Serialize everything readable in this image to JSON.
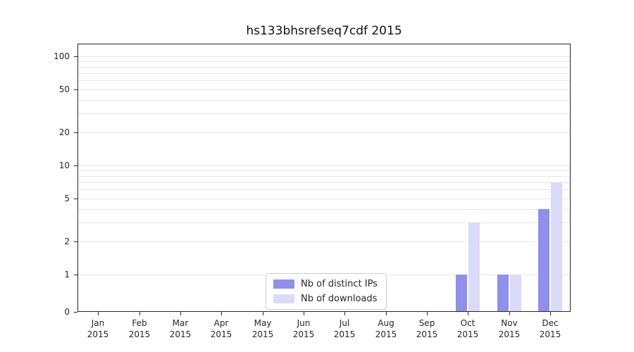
{
  "chart_data": {
    "type": "bar",
    "title": "hs133bhsrefseq7cdf 2015",
    "categories": [
      "Jan 2015",
      "Feb 2015",
      "Mar 2015",
      "Apr 2015",
      "May 2015",
      "Jun 2015",
      "Jul 2015",
      "Aug 2015",
      "Sep 2015",
      "Oct 2015",
      "Nov 2015",
      "Dec 2015"
    ],
    "series": [
      {
        "name": "Nb of distinct IPs",
        "color": "#8f8fee",
        "values": [
          0,
          0,
          0,
          0,
          0,
          0,
          0,
          0,
          0,
          1,
          1,
          4
        ]
      },
      {
        "name": "Nb of downloads",
        "color": "#dadaf9",
        "values": [
          0,
          0,
          0,
          0,
          0,
          0,
          0,
          0,
          0,
          3,
          1,
          7
        ]
      }
    ],
    "yscale": "symlog",
    "y_ticks": [
      0,
      1,
      2,
      5,
      10,
      20,
      50,
      100
    ],
    "grid_values": [
      1,
      2,
      3,
      4,
      5,
      6,
      7,
      8,
      9,
      10,
      20,
      30,
      40,
      50,
      60,
      70,
      80,
      90,
      100
    ],
    "ylim": [
      0,
      100
    ],
    "grid": "horizontal",
    "legend_position": "lower center"
  },
  "colors": {
    "spine": "#262626",
    "grid": "#e7e7e7",
    "distinct_ips": "#8f8fee",
    "downloads": "#dadaf9"
  }
}
